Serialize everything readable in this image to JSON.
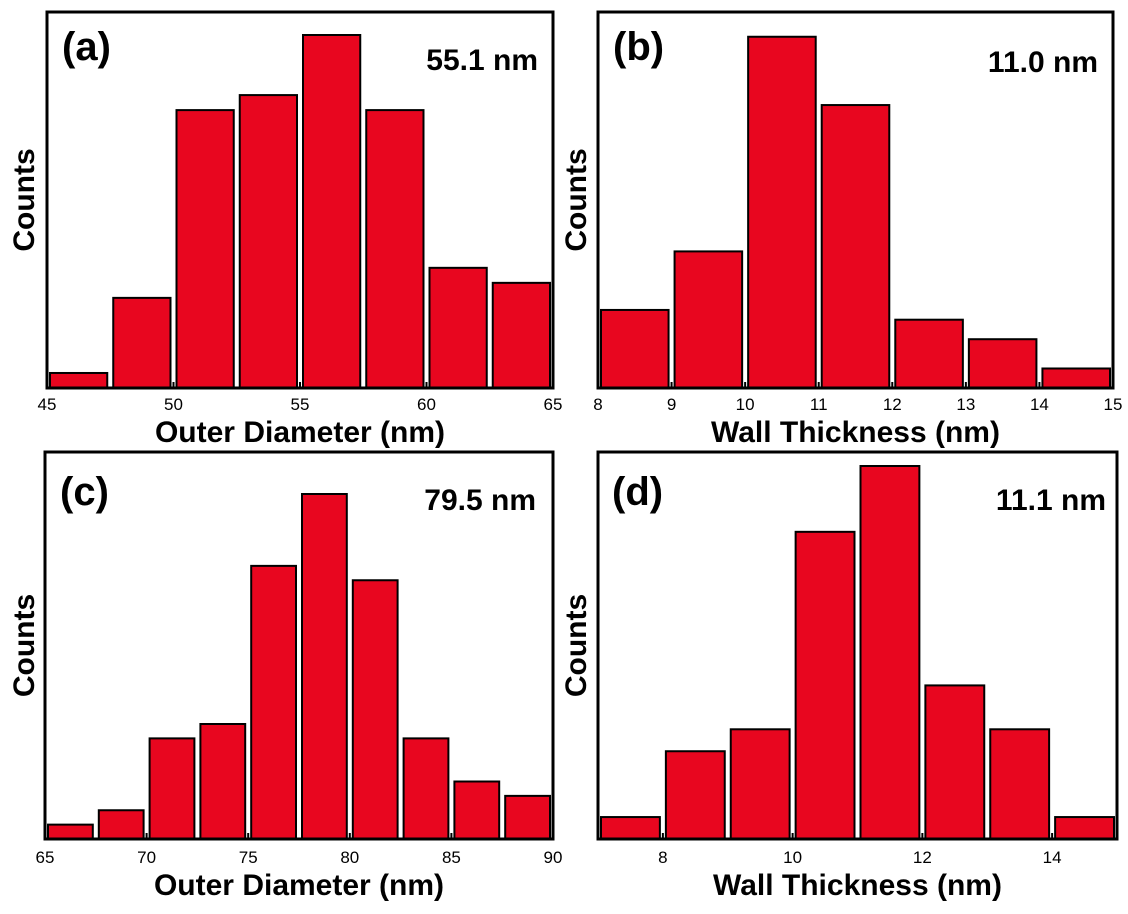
{
  "chart_data": [
    {
      "panel": "(a)",
      "type": "bar",
      "annotation": "55.1 nm",
      "xlabel": "Outer Diameter (nm)",
      "ylabel": "Counts",
      "xlim": [
        45,
        65
      ],
      "xticks": [
        "45",
        "50",
        "55",
        "60",
        "65"
      ],
      "bar_width": 2.5,
      "x": [
        46.25,
        48.75,
        51.25,
        53.75,
        56.25,
        58.75,
        61.25,
        63.75
      ],
      "values": [
        2,
        12,
        37,
        39,
        47,
        37,
        16,
        14
      ],
      "ylim": [
        0,
        47
      ],
      "bar_color": "#e8061f",
      "grid": false
    },
    {
      "panel": "(b)",
      "type": "bar",
      "annotation": "11.0 nm",
      "xlabel": "Wall Thickness (nm)",
      "ylabel": "Counts",
      "xlim": [
        8,
        15
      ],
      "xticks": [
        "8",
        "9",
        "10",
        "11",
        "12",
        "13",
        "14",
        "15"
      ],
      "bar_width": 1.0,
      "x": [
        8.5,
        9.5,
        10.5,
        11.5,
        12.5,
        13.5,
        14.5
      ],
      "values": [
        8,
        14,
        36,
        29,
        7,
        5,
        2
      ],
      "ylim": [
        0,
        37
      ],
      "bar_color": "#e8061f",
      "grid": false
    },
    {
      "panel": "(c)",
      "type": "bar",
      "annotation": "79.5 nm",
      "xlabel": "Outer Diameter (nm)",
      "ylabel": "Counts",
      "xlim": [
        65,
        90
      ],
      "xticks": [
        "65",
        "70",
        "75",
        "80",
        "85",
        "90"
      ],
      "bar_width": 2.5,
      "x": [
        66.25,
        68.75,
        71.25,
        73.75,
        76.25,
        78.75,
        81.25,
        83.75,
        86.25,
        88.75
      ],
      "values": [
        1,
        2,
        7,
        8,
        19,
        24,
        18,
        7,
        4,
        3
      ],
      "ylim": [
        0,
        24
      ],
      "bar_color": "#e8061f",
      "grid": false
    },
    {
      "panel": "(d)",
      "type": "bar",
      "annotation": "11.1 nm",
      "xlabel": "Wall Thickness (nm)",
      "ylabel": "Counts",
      "xlim": [
        7,
        15
      ],
      "xticks": [
        "8",
        "10",
        "12",
        "14"
      ],
      "bar_width": 1.0,
      "x": [
        7.5,
        8.5,
        9.5,
        10.5,
        11.5,
        12.5,
        13.5,
        14.5
      ],
      "values": [
        1,
        4,
        5,
        14,
        17,
        7,
        5,
        1
      ],
      "ylim": [
        0,
        17
      ],
      "bar_color": "#e8061f",
      "grid": false
    }
  ]
}
